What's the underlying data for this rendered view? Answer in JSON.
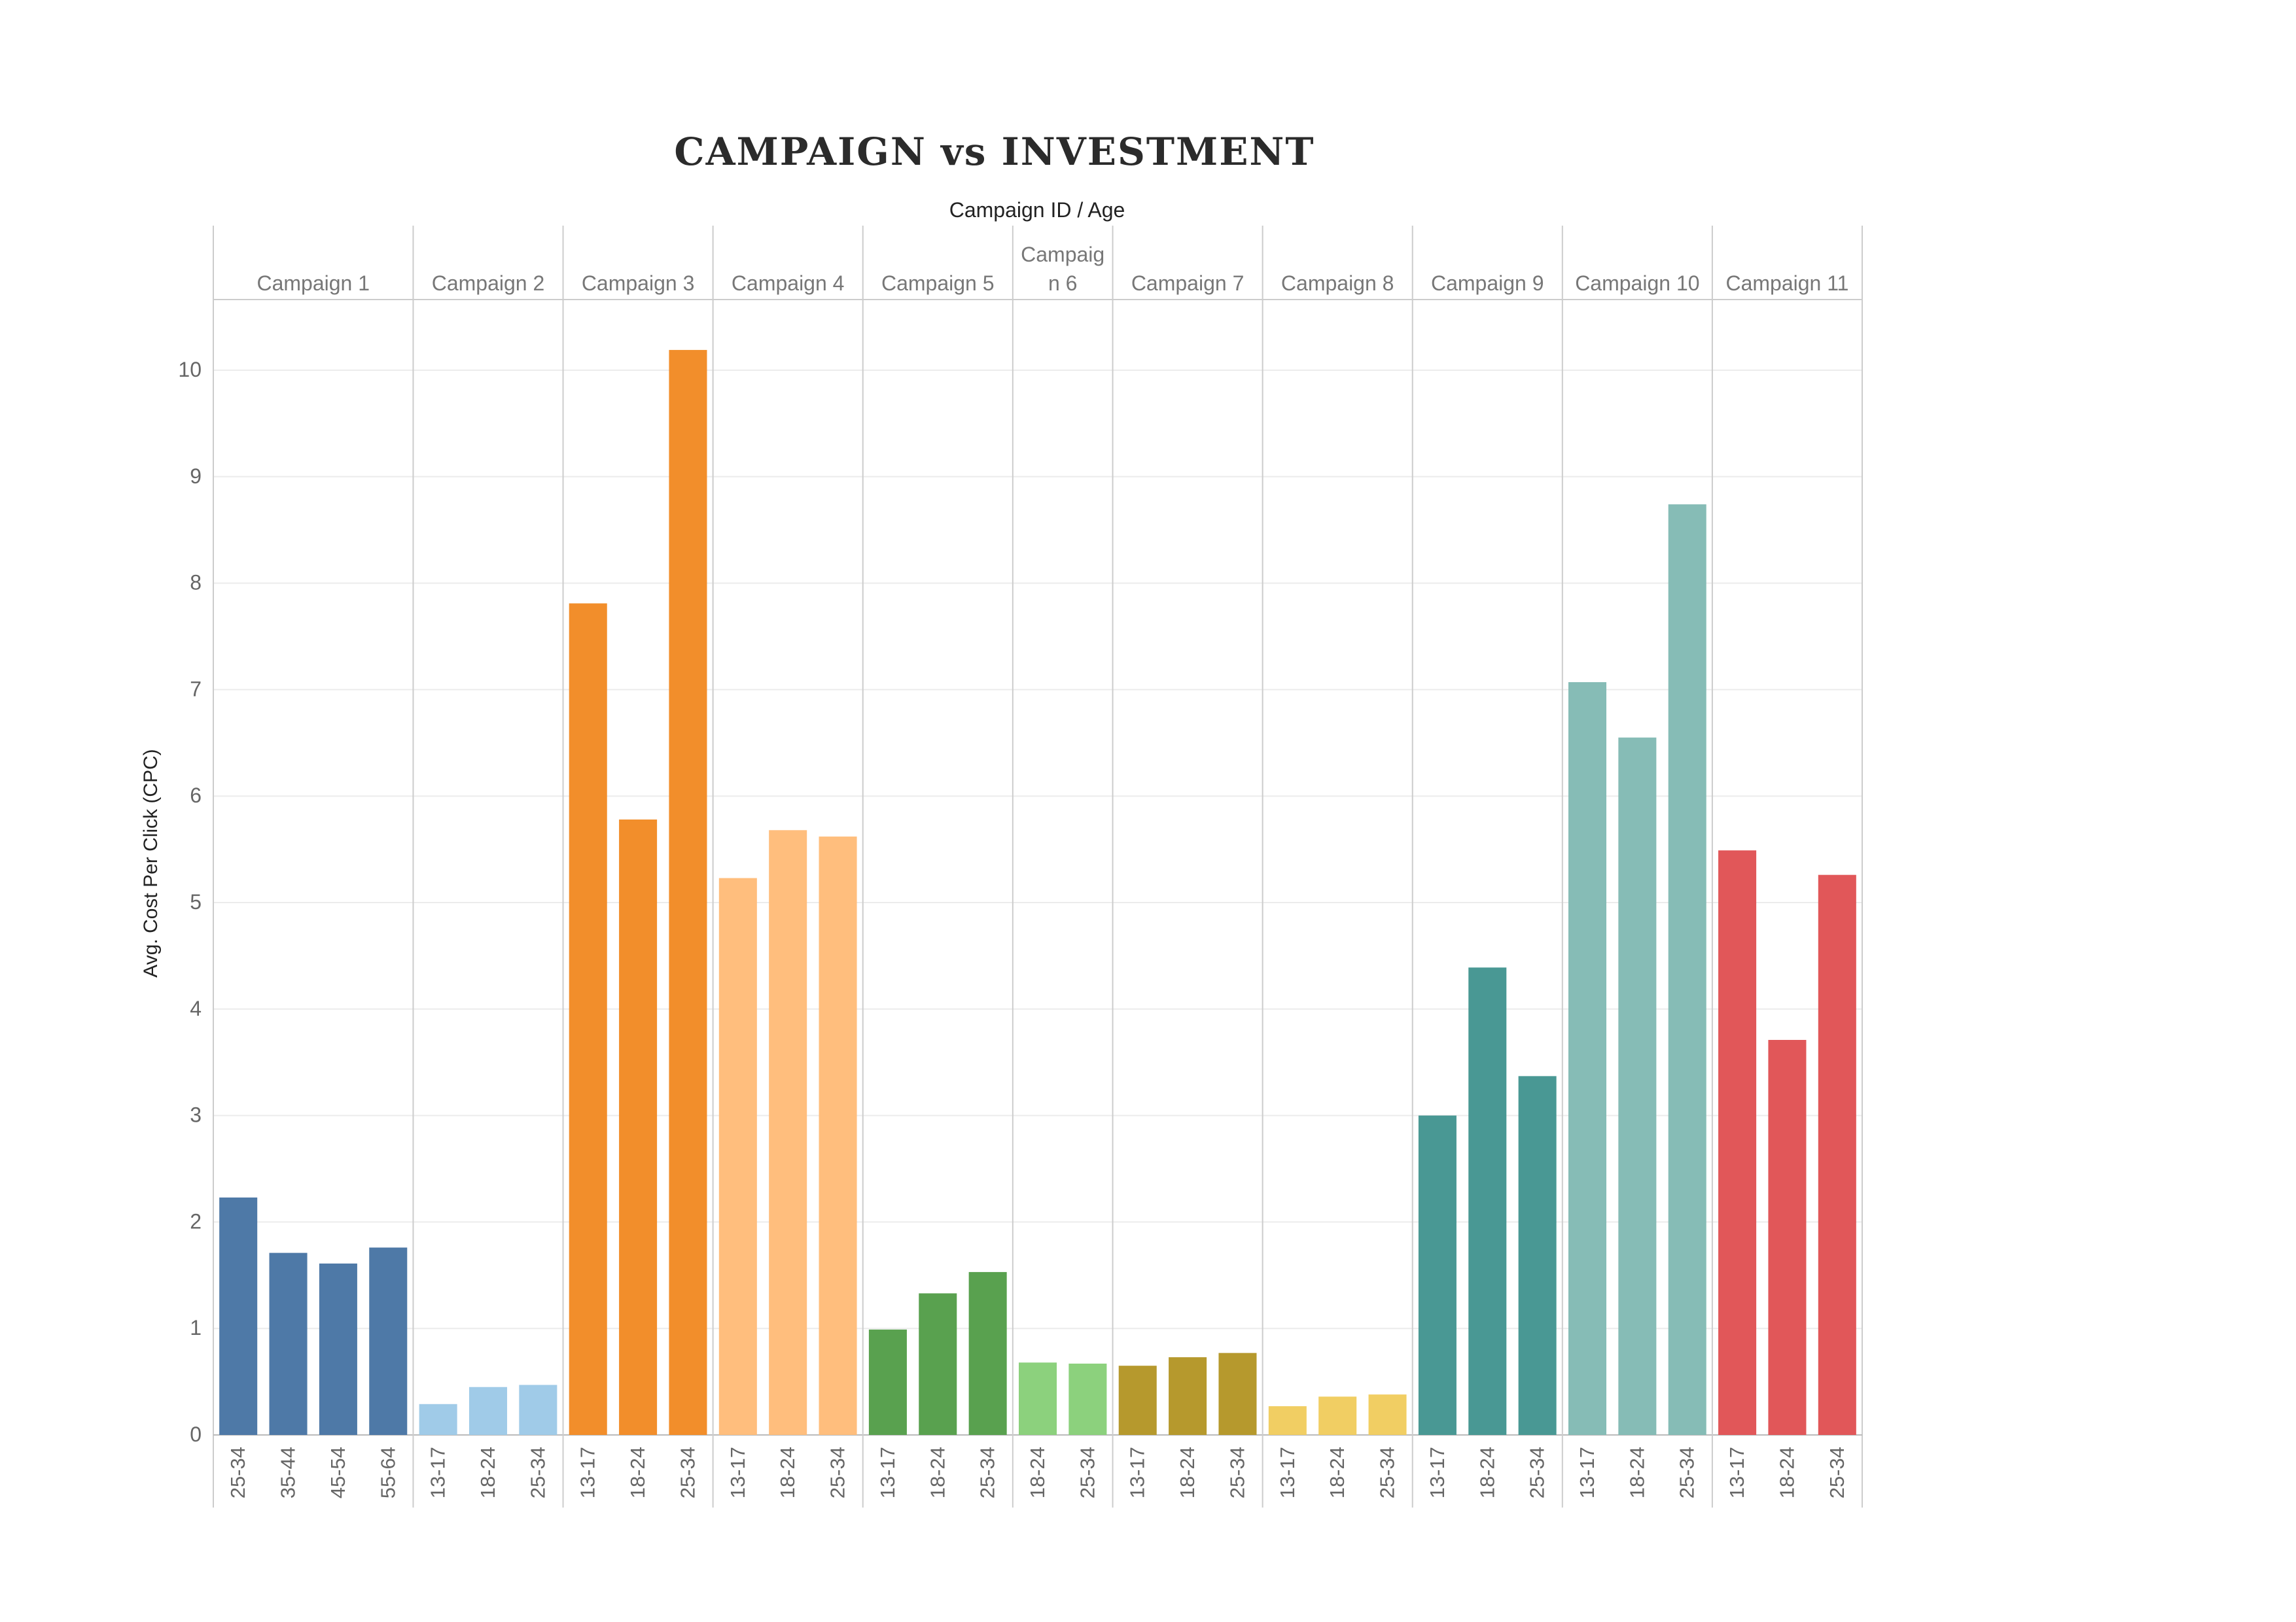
{
  "chart_data": {
    "type": "bar",
    "title": "CAMPAIGN vs INVESTMENT",
    "header_label": "Campaign ID  /  Age",
    "ylabel": "Avg. Cost Per Click (CPC)",
    "ylim": [
      0,
      11
    ],
    "yticks": [
      0,
      1,
      2,
      3,
      4,
      5,
      6,
      7,
      8,
      9,
      10
    ],
    "grid": true,
    "groups": [
      {
        "name": "Campaign 1",
        "color": "#4e79a7",
        "categories": [
          "25-34",
          "35-44",
          "45-54",
          "55-64"
        ],
        "values": [
          2.23,
          1.71,
          1.61,
          1.76
        ]
      },
      {
        "name": "Campaign 2",
        "color": "#a0cbe8",
        "categories": [
          "13-17",
          "18-24",
          "25-34"
        ],
        "values": [
          0.29,
          0.45,
          0.47
        ]
      },
      {
        "name": "Campaign 3",
        "color": "#f28e2b",
        "categories": [
          "13-17",
          "18-24",
          "25-34"
        ],
        "values": [
          7.81,
          5.78,
          10.19
        ]
      },
      {
        "name": "Campaign 4",
        "color": "#ffbe7d",
        "categories": [
          "13-17",
          "18-24",
          "25-34"
        ],
        "values": [
          5.23,
          5.68,
          5.62
        ]
      },
      {
        "name": "Campaign 5",
        "color": "#59a14f",
        "categories": [
          "13-17",
          "18-24",
          "25-34"
        ],
        "values": [
          0.99,
          1.33,
          1.53
        ]
      },
      {
        "name": "Campaign 6",
        "color": "#8cd17d",
        "categories": [
          "18-24",
          "25-34"
        ],
        "values": [
          0.68,
          0.67
        ]
      },
      {
        "name": "Campaign 7",
        "color": "#b6992d",
        "categories": [
          "13-17",
          "18-24",
          "25-34"
        ],
        "values": [
          0.65,
          0.73,
          0.77
        ]
      },
      {
        "name": "Campaign 8",
        "color": "#f1ce63",
        "categories": [
          "13-17",
          "18-24",
          "25-34"
        ],
        "values": [
          0.27,
          0.36,
          0.38
        ]
      },
      {
        "name": "Campaign 9",
        "color": "#499894",
        "categories": [
          "13-17",
          "18-24",
          "25-34"
        ],
        "values": [
          3.0,
          4.39,
          3.37
        ]
      },
      {
        "name": "Campaign 10",
        "color": "#86bcb6",
        "categories": [
          "13-17",
          "18-24",
          "25-34"
        ],
        "values": [
          7.07,
          6.55,
          8.74
        ]
      },
      {
        "name": "Campaign 11",
        "color": "#e15759",
        "categories": [
          "13-17",
          "18-24",
          "25-34"
        ],
        "values": [
          5.49,
          3.71,
          5.26
        ]
      }
    ]
  }
}
